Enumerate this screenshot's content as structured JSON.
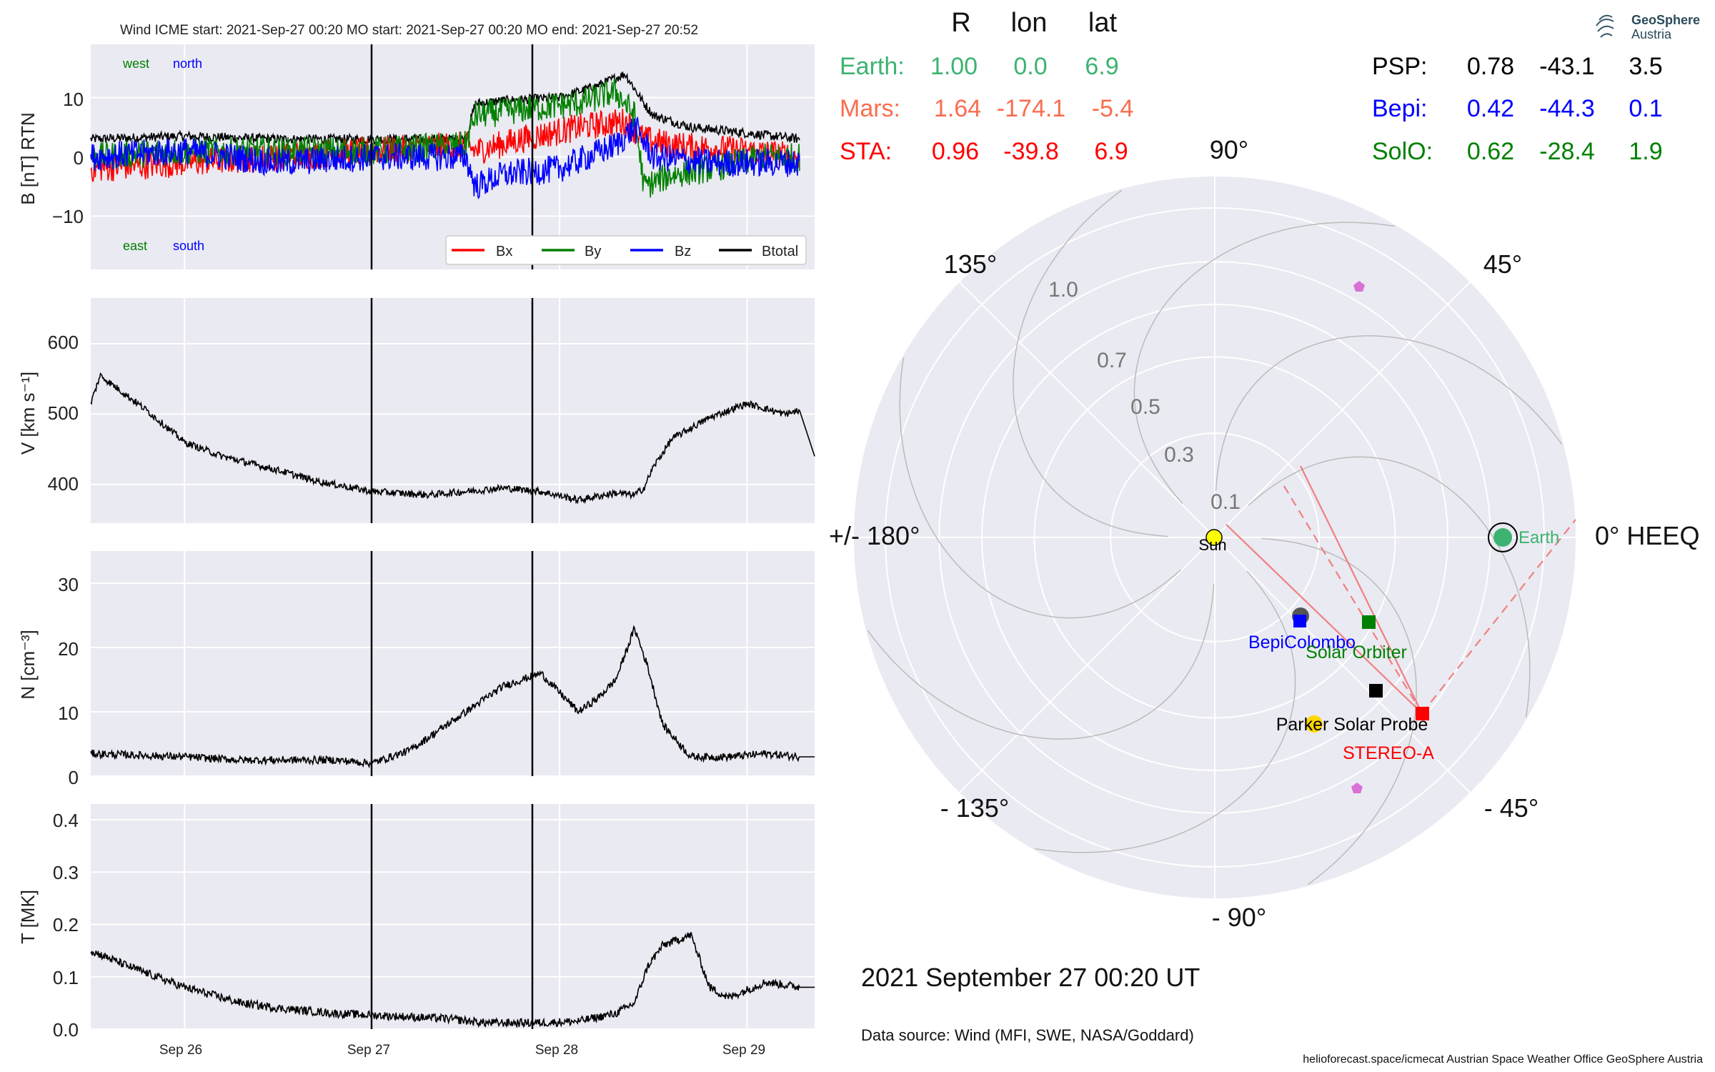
{
  "header": {
    "left_title": "Wind    ICME start: 2021-Sep-27 00:20   MO start: 2021-Sep-27 00:20   MO end: 2021-Sep-27 20:52",
    "table_header": [
      "R",
      "lon",
      "lat"
    ],
    "timestamp": "2021 September 27  00:20 UT",
    "data_source": "Data source: Wind (MFI, SWE, NASA/Goddard)",
    "footer": "helioforecast.space/icmecat   Austrian Space Weather Office   GeoSphere Austria",
    "logo_line1": "GeoSphere",
    "logo_line2": "Austria"
  },
  "positions": {
    "left": [
      {
        "name": "Earth:",
        "R": "1.00",
        "lon": "0.0",
        "lat": "6.9",
        "color": "#3cb371"
      },
      {
        "name": "Mars:",
        "R": "1.64",
        "lon": "-174.1",
        "lat": "-5.4",
        "color": "#fa6d4f"
      },
      {
        "name": "STA:",
        "R": "0.96",
        "lon": "-39.8",
        "lat": "6.9",
        "color": "#ff0000"
      }
    ],
    "right": [
      {
        "name": "PSP:",
        "R": "0.78",
        "lon": "-43.1",
        "lat": "3.5",
        "color": "#000000"
      },
      {
        "name": "Bepi:",
        "R": "0.42",
        "lon": "-44.3",
        "lat": "0.1",
        "color": "#0000ff"
      },
      {
        "name": "SolO:",
        "R": "0.62",
        "lon": "-28.4",
        "lat": "1.9",
        "color": "#008000"
      }
    ]
  },
  "polar": {
    "angle_labels": {
      "a90": "90°",
      "a45": "45°",
      "a0": "0° HEEQ",
      "am45": "- 45°",
      "am90": "- 90°",
      "am135": "- 135°",
      "a180": "+/- 180°",
      "a135": "135°"
    },
    "radial_labels": [
      "0.1",
      "0.3",
      "0.5",
      "0.7",
      "1.0"
    ],
    "bodies": {
      "sun": "Sun",
      "earth": "Earth",
      "bepi": "BepiColombo",
      "solo": "Solar Orbiter",
      "psp": "Parker Solar Probe",
      "sta": "STEREO-A"
    }
  },
  "panels": {
    "b": {
      "ylabel": "B [nT] RTN",
      "ticks": [
        "10",
        "0",
        "−10"
      ],
      "west": "west",
      "north": "north",
      "east": "east",
      "south": "south"
    },
    "v": {
      "ylabel": "V [km s⁻¹]",
      "ticks": [
        "600",
        "500",
        "400"
      ]
    },
    "n": {
      "ylabel": "N [cm⁻³]",
      "ticks": [
        "30",
        "20",
        "10",
        "0"
      ]
    },
    "t": {
      "ylabel": "T [MK]",
      "ticks": [
        "0.4",
        "0.3",
        "0.2",
        "0.1",
        "0.0"
      ]
    },
    "xticks": [
      "Sep 26",
      "Sep 27",
      "Sep 28",
      "Sep 29"
    ]
  },
  "legend": [
    "Bx",
    "By",
    "Bz",
    "Btotal"
  ],
  "colors": {
    "bx": "#ff0000",
    "by": "#008000",
    "bz": "#0000ff",
    "btot": "#000000",
    "panel_bg": "#eaeaf2"
  },
  "chart_data": [
    {
      "type": "line",
      "title": "",
      "ylabel": "B [nT] RTN",
      "ylim": [
        -19,
        19
      ],
      "x_unit": "day offset from 2021-Sep-25 12:00",
      "xlim": [
        0,
        3.86
      ],
      "series": [
        {
          "name": "Btotal",
          "x": [
            0,
            0.5,
            1,
            1.5,
            2.0,
            2.05,
            2.2,
            2.5,
            2.7,
            2.85,
            2.95,
            3.0,
            3.2,
            3.5,
            3.78
          ],
          "values": [
            3,
            3.5,
            3,
            3,
            3,
            9,
            9.5,
            10,
            12,
            14,
            9,
            7,
            5,
            4,
            3
          ]
        },
        {
          "name": "Bx",
          "x": [
            0,
            0.5,
            1,
            1.5,
            2.0,
            2.05,
            2.3,
            2.6,
            2.85,
            2.95,
            3.1,
            3.5,
            3.78
          ],
          "values": [
            -2,
            -1,
            0,
            1,
            2,
            1,
            3,
            5,
            6,
            3,
            2,
            1,
            0
          ]
        },
        {
          "name": "By",
          "x": [
            0,
            0.5,
            1,
            1.5,
            2.0,
            2.05,
            2.3,
            2.6,
            2.8,
            2.9,
            2.95,
            3.1,
            3.3,
            3.6,
            3.78
          ],
          "values": [
            0,
            1,
            1,
            1,
            2,
            7,
            8,
            9,
            11,
            7,
            -5,
            -3,
            -2,
            0,
            0
          ]
        },
        {
          "name": "Bz",
          "x": [
            0,
            0.5,
            1,
            1.5,
            2.0,
            2.05,
            2.2,
            2.5,
            2.8,
            2.9,
            3.0,
            3.3,
            3.6,
            3.78
          ],
          "values": [
            0,
            1,
            -1,
            0,
            0,
            -5,
            -3,
            -2,
            2,
            5,
            0,
            -1,
            -1,
            -1
          ]
        }
      ]
    },
    {
      "type": "line",
      "title": "",
      "ylabel": "V [km s⁻¹]",
      "ylim": [
        345,
        665
      ],
      "x_unit": "day offset from 2021-Sep-25 12:00",
      "xlim": [
        0,
        3.86
      ],
      "series": [
        {
          "name": "",
          "x": [
            0,
            0.05,
            0.3,
            0.5,
            0.7,
            1.0,
            1.2,
            1.5,
            1.8,
            2.0,
            2.2,
            2.4,
            2.6,
            2.8,
            2.9,
            2.95,
            3.0,
            3.1,
            3.3,
            3.5,
            3.7,
            3.78,
            3.86
          ],
          "values": [
            515,
            555,
            505,
            460,
            440,
            420,
            405,
            390,
            385,
            390,
            395,
            390,
            378,
            388,
            385,
            395,
            425,
            465,
            495,
            515,
            500,
            505,
            440
          ]
        }
      ]
    },
    {
      "type": "line",
      "title": "",
      "ylabel": "N [cm⁻³]",
      "ylim": [
        0,
        35
      ],
      "x_unit": "day offset from 2021-Sep-25 12:00",
      "xlim": [
        0,
        3.86
      ],
      "series": [
        {
          "name": "",
          "x": [
            0,
            0.5,
            0.8,
            1.0,
            1.3,
            1.5,
            1.7,
            1.9,
            2.0,
            2.2,
            2.4,
            2.6,
            2.7,
            2.8,
            2.9,
            2.97,
            3.05,
            3.2,
            3.4,
            3.6,
            3.78,
            3.86
          ],
          "values": [
            3.5,
            3,
            2.5,
            2.5,
            2.5,
            2,
            4,
            8,
            10,
            14,
            16,
            10,
            12,
            15,
            23,
            17,
            8,
            3,
            3,
            3.5,
            3,
            3
          ]
        }
      ]
    },
    {
      "type": "line",
      "title": "",
      "ylabel": "T [MK]",
      "ylim": [
        0,
        0.43
      ],
      "x_unit": "day offset from 2021-Sep-25 12:00",
      "xlim": [
        0,
        3.86
      ],
      "series": [
        {
          "name": "",
          "x": [
            0,
            0.2,
            0.5,
            0.8,
            1.0,
            1.3,
            1.6,
            1.9,
            2.1,
            2.4,
            2.6,
            2.8,
            2.9,
            2.97,
            3.05,
            3.2,
            3.3,
            3.4,
            3.6,
            3.78,
            3.86
          ],
          "values": [
            0.15,
            0.12,
            0.08,
            0.05,
            0.04,
            0.03,
            0.025,
            0.02,
            0.012,
            0.012,
            0.015,
            0.03,
            0.05,
            0.12,
            0.16,
            0.18,
            0.08,
            0.06,
            0.09,
            0.08,
            0.08
          ]
        }
      ]
    }
  ]
}
